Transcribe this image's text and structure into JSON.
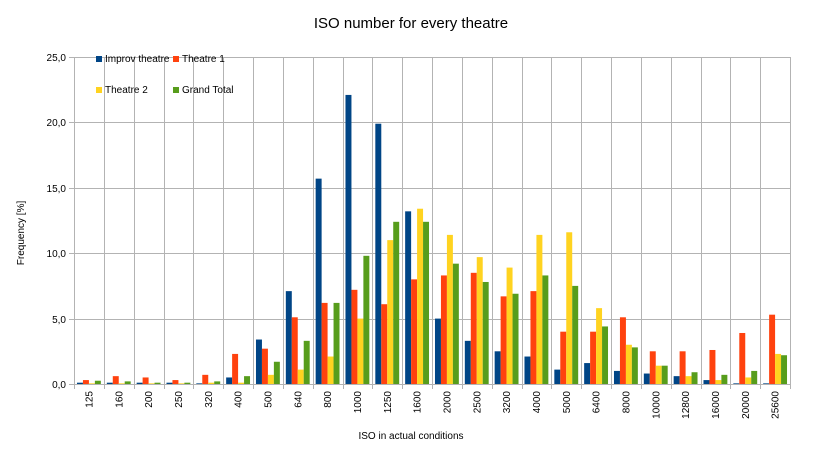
{
  "chart_data": {
    "type": "bar",
    "title": "ISO number for every theatre",
    "xlabel": "ISO in actual conditions",
    "ylabel": "Frequency [%]",
    "ylim": [
      0,
      25
    ],
    "yticks": [
      "0,0",
      "5,0",
      "10,0",
      "15,0",
      "20,0",
      "25,0"
    ],
    "grid": "vertical and horizontal",
    "legend_position": "top-left",
    "categories": [
      "125",
      "160",
      "200",
      "250",
      "320",
      "400",
      "500",
      "640",
      "800",
      "1000",
      "1250",
      "1600",
      "2000",
      "2500",
      "3200",
      "4000",
      "5000",
      "6400",
      "8000",
      "10000",
      "12800",
      "16000",
      "20000",
      "25600"
    ],
    "series": [
      {
        "name": "Improv theatre",
        "color": "#004586",
        "values": [
          0.1,
          0.1,
          0.1,
          0.1,
          0.05,
          0.5,
          3.4,
          7.1,
          15.7,
          22.1,
          19.9,
          13.2,
          5.0,
          3.3,
          2.5,
          2.1,
          1.1,
          1.6,
          1.0,
          0.8,
          0.6,
          0.3,
          0.05,
          0.05
        ]
      },
      {
        "name": "Theatre 1",
        "color": "#FF420E",
        "values": [
          0.3,
          0.6,
          0.5,
          0.3,
          0.7,
          2.3,
          2.7,
          5.1,
          6.2,
          7.2,
          6.1,
          8.0,
          8.3,
          8.5,
          6.7,
          7.1,
          4.0,
          4.0,
          5.1,
          2.5,
          2.5,
          2.6,
          3.9,
          5.3
        ]
      },
      {
        "name": "Theatre 2",
        "color": "#FFD320",
        "values": [
          0.05,
          0.05,
          0.05,
          0.05,
          0.1,
          0.1,
          0.7,
          1.1,
          2.1,
          5.0,
          11.0,
          13.4,
          11.4,
          9.7,
          8.9,
          11.4,
          11.6,
          5.8,
          3.0,
          1.4,
          0.6,
          0.3,
          0.5,
          2.3
        ]
      },
      {
        "name": "Grand Total",
        "color": "#579D1C",
        "values": [
          0.25,
          0.2,
          0.1,
          0.1,
          0.2,
          0.6,
          1.7,
          3.3,
          6.2,
          9.8,
          12.4,
          12.4,
          9.2,
          7.8,
          6.9,
          8.3,
          7.5,
          4.4,
          2.8,
          1.4,
          0.9,
          0.7,
          1.0,
          2.2
        ]
      }
    ]
  }
}
